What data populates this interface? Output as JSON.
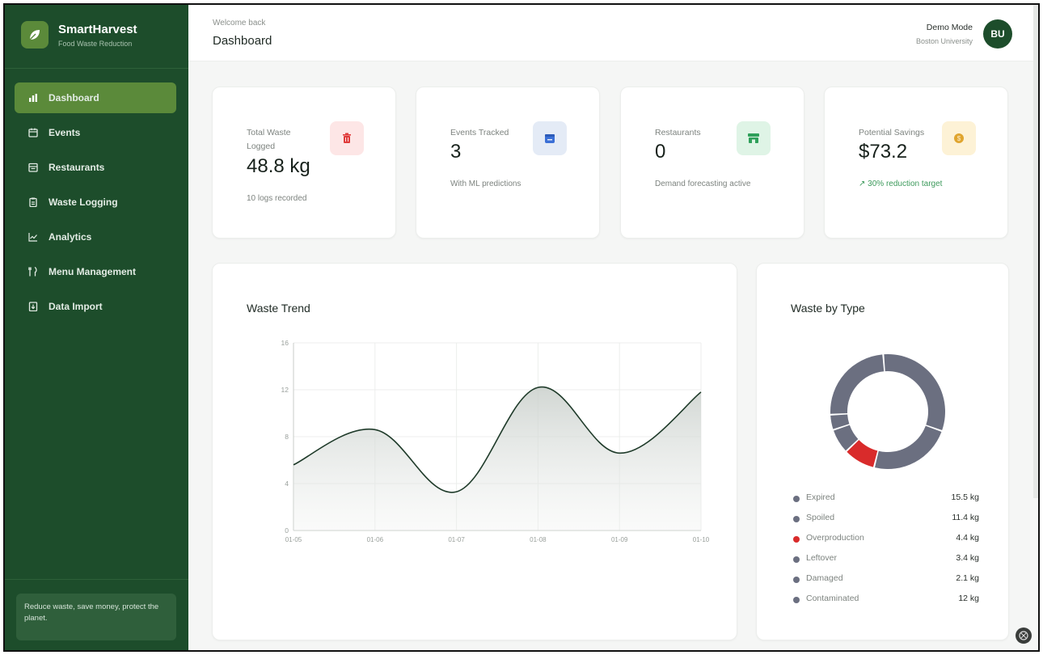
{
  "brand": {
    "name": "SmartHarvest",
    "subtitle": "Food Waste Reduction",
    "icon": "leaf-icon"
  },
  "sidebar": {
    "items": [
      {
        "label": "Dashboard",
        "icon": "bar-chart-icon",
        "active": true
      },
      {
        "label": "Events",
        "icon": "calendar-icon",
        "active": false
      },
      {
        "label": "Restaurants",
        "icon": "store-icon",
        "active": false
      },
      {
        "label": "Waste Logging",
        "icon": "clipboard-icon",
        "active": false
      },
      {
        "label": "Analytics",
        "icon": "line-chart-icon",
        "active": false
      },
      {
        "label": "Menu Management",
        "icon": "utensils-icon",
        "active": false
      },
      {
        "label": "Data Import",
        "icon": "file-import-icon",
        "active": false
      }
    ],
    "tagline": "Reduce waste, save money, protect the planet."
  },
  "header": {
    "welcome": "Welcome back",
    "title": "Dashboard",
    "user_name": "Demo Mode",
    "user_org": "Boston University",
    "avatar_initials": "BU"
  },
  "stats": [
    {
      "label": "Total Waste Logged",
      "value": "48.8 kg",
      "sub": "10 logs recorded",
      "icon": "trash-icon",
      "icon_color": "#e03b3b",
      "icon_bg": "#fde6e6"
    },
    {
      "label": "Events Tracked",
      "value": "3",
      "sub": "With ML predictions",
      "icon": "calendar-icon",
      "icon_color": "#3b6fd6",
      "icon_bg": "#e4ebf6"
    },
    {
      "label": "Restaurants",
      "value": "0",
      "sub": "Demand forecasting active",
      "icon": "store-icon",
      "icon_color": "#2fa05a",
      "icon_bg": "#dff4e6"
    },
    {
      "label": "Potential Savings",
      "value": "$73.2",
      "sub": "30% reduction target",
      "icon": "coin-icon",
      "icon_color": "#e0a52f",
      "icon_bg": "#fdf2d6",
      "sub_color": "#3d9a5c"
    }
  ],
  "waste_trend": {
    "title": "Waste Trend"
  },
  "waste_by_type": {
    "title": "Waste by Type"
  },
  "chart_data": [
    {
      "type": "area",
      "title": "Waste Trend",
      "categories": [
        "01-05",
        "01-06",
        "01-07",
        "01-08",
        "01-09",
        "01-10"
      ],
      "values": [
        5.6,
        8.6,
        3.3,
        12.2,
        6.6,
        11.8
      ],
      "ylim": [
        0,
        16
      ],
      "yticks": [
        0,
        4,
        8,
        12,
        16
      ],
      "grid": true,
      "line_color": "#1f3b2a"
    },
    {
      "type": "pie",
      "title": "Waste by Type",
      "series": [
        {
          "name": "Expired",
          "value": 15.5,
          "label": "15.5 kg",
          "color": "#6b6f80"
        },
        {
          "name": "Spoiled",
          "value": 11.4,
          "label": "11.4 kg",
          "color": "#6b6f80"
        },
        {
          "name": "Overproduction",
          "value": 4.4,
          "label": "4.4 kg",
          "color": "#d92b2b"
        },
        {
          "name": "Leftover",
          "value": 3.4,
          "label": "3.4 kg",
          "color": "#6b6f80"
        },
        {
          "name": "Damaged",
          "value": 2.1,
          "label": "2.1 kg",
          "color": "#6b6f80"
        },
        {
          "name": "Contaminated",
          "value": 12,
          "label": "12 kg",
          "color": "#6b6f80"
        }
      ]
    }
  ]
}
